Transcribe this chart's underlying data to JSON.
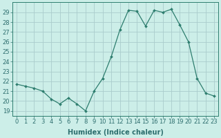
{
  "x": [
    0,
    1,
    2,
    3,
    4,
    5,
    6,
    7,
    8,
    9,
    10,
    11,
    12,
    13,
    14,
    15,
    16,
    17,
    18,
    19,
    20,
    21,
    22,
    23
  ],
  "y": [
    21.7,
    21.5,
    21.3,
    21.0,
    20.2,
    19.7,
    20.3,
    19.7,
    19.0,
    21.0,
    22.3,
    24.5,
    27.2,
    29.2,
    29.1,
    27.6,
    29.2,
    29.0,
    29.3,
    27.7,
    26.0,
    22.3,
    20.8,
    20.5
  ],
  "xlabel": "Humidex (Indice chaleur)",
  "ylabel": "",
  "ylim": [
    18.5,
    30.0
  ],
  "yticks": [
    19,
    20,
    21,
    22,
    23,
    24,
    25,
    26,
    27,
    28,
    29
  ],
  "xticks": [
    0,
    1,
    2,
    3,
    4,
    5,
    6,
    7,
    8,
    9,
    10,
    11,
    12,
    13,
    14,
    15,
    16,
    17,
    18,
    19,
    20,
    21,
    22,
    23
  ],
  "line_color": "#2d7d6e",
  "marker_color": "#2d7d6e",
  "bg_color": "#cceee8",
  "grid_color": "#aacccc",
  "text_color": "#2d6e6e",
  "axis_fontsize": 6.5,
  "tick_fontsize": 6,
  "xlabel_fontsize": 7
}
